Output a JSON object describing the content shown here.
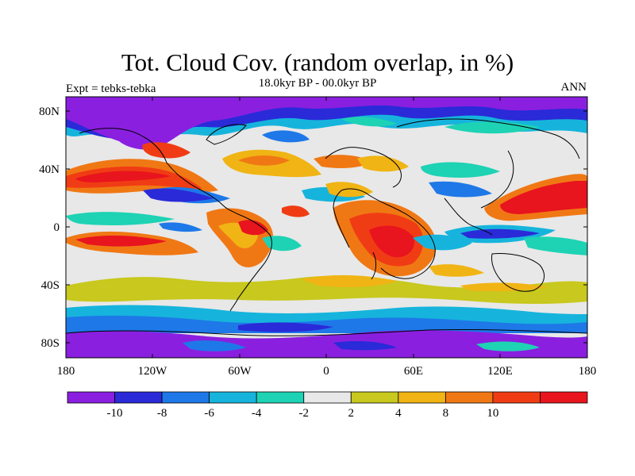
{
  "map": {
    "title": "Tot. Cloud Cov. (random overlap, in %)",
    "subtitle": "18.0kyr BP - 00.0kyr BP",
    "left_label": "Expt = tebks-tebka",
    "right_label": "ANN",
    "lat_ticks": [
      "80N",
      "40N",
      "0",
      "40S",
      "80S"
    ],
    "lon_ticks": [
      "180",
      "120W",
      "60W",
      "0",
      "60E",
      "120E",
      "180"
    ],
    "projection": "cylindrical equidistant",
    "lon_range": [
      -180,
      180
    ],
    "lat_range": [
      -90,
      90
    ]
  },
  "colorbar": {
    "colors": [
      "#8a1fe0",
      "#2a2ad8",
      "#1e78e8",
      "#16b4dc",
      "#1ed2b4",
      "#e8e8e8",
      "#c8c81e",
      "#f0b414",
      "#f07814",
      "#f03c14",
      "#e8141e"
    ],
    "labels": [
      "-10",
      "-8",
      "-6",
      "-4",
      "-2",
      "2",
      "4",
      "8",
      "10"
    ]
  }
}
